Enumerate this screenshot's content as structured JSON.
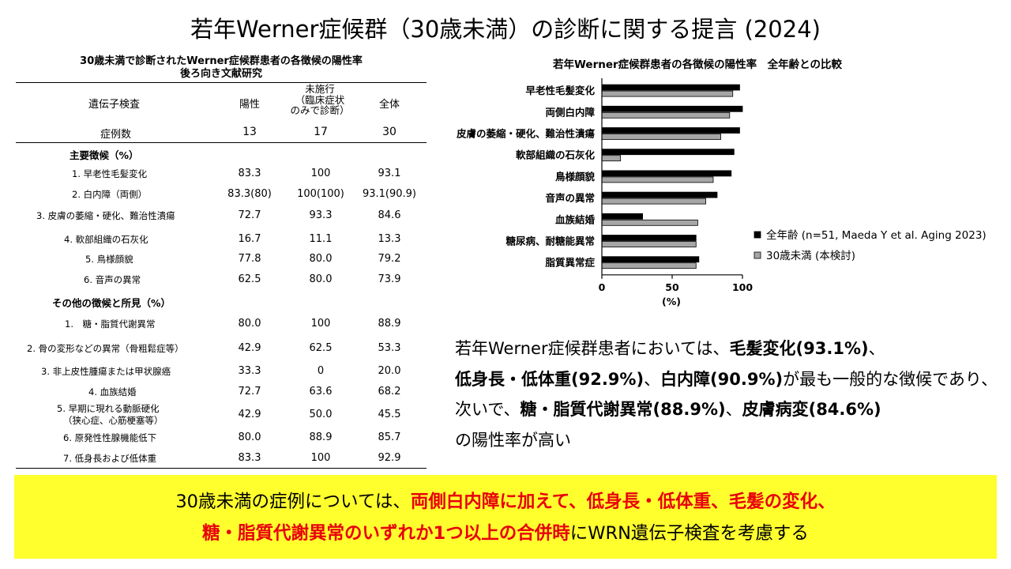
{
  "title": "若年Werner症候群（30歳未満）の診断に関する提言 (2024)",
  "table": {
    "title_line1": "30歳未満で診断されたWerner症候群患者の各徴候の陽性率",
    "title_line2": "後ろ向き文献研究",
    "header": {
      "label": "遺伝子検査",
      "col1": "陽性",
      "col2_l1": "未施行",
      "col2_l2": "（臨床症状",
      "col2_l3": "のみで診断）",
      "col3": "全体"
    },
    "count_row": {
      "label": "症例数",
      "v1": "13",
      "v2": "17",
      "v3": "30"
    },
    "section1": "主要徴候（%）",
    "rows1": [
      {
        "label": "1. 早老性毛髪変化",
        "v1": "83.3",
        "v2": "100",
        "v3": "93.1"
      },
      {
        "label": "2. 白内障（両側）",
        "v1": "83.3(80)",
        "v2": "100(100)",
        "v3": "93.1(90.9)"
      },
      {
        "label": "3. 皮膚の萎縮・硬化、難治性潰瘍",
        "v1": "72.7",
        "v2": "93.3",
        "v3": "84.6"
      },
      {
        "label": "4. 軟部組織の石灰化",
        "v1": "16.7",
        "v2": "11.1",
        "v3": "13.3"
      },
      {
        "label": "5. 鳥様顔貌",
        "v1": "77.8",
        "v2": "80.0",
        "v3": "79.2"
      },
      {
        "label": "6. 音声の異常",
        "v1": "62.5",
        "v2": "80.0",
        "v3": "73.9"
      }
    ],
    "section2": "その他の徴候と所見（%）",
    "rows2": [
      {
        "label": "1.　糖・脂質代謝異常",
        "v1": "80.0",
        "v2": "100",
        "v3": "88.9"
      },
      {
        "label": "2. 骨の変形などの異常（骨粗鬆症等）",
        "v1": "42.9",
        "v2": "62.5",
        "v3": "53.3"
      },
      {
        "label": "3. 非上皮性腫瘍または甲状腺癌",
        "v1": "33.3",
        "v2": "0",
        "v3": "20.0"
      },
      {
        "label": "4. 血族結婚",
        "v1": "72.7",
        "v2": "63.6",
        "v3": "68.2"
      },
      {
        "label": "5. 早期に現れる動脈硬化",
        "label2": "（狭心症、心筋梗塞等）",
        "v1": "42.9",
        "v2": "50.0",
        "v3": "45.5"
      },
      {
        "label": "6. 原発性性腺機能低下",
        "v1": "80.0",
        "v2": "88.9",
        "v3": "85.7"
      },
      {
        "label": "7. 低身長および低体重",
        "v1": "83.3",
        "v2": "100",
        "v3": "92.9"
      }
    ]
  },
  "chart_data": {
    "type": "bar",
    "orientation": "horizontal",
    "title": "若年Werner症候群患者の各徴候の陽性率　全年齢との比較",
    "categories": [
      "早老性毛髪変化",
      "両側白内障",
      "皮膚の萎縮・硬化、難治性潰瘍",
      "軟部組織の石灰化",
      "鳥様顔貌",
      "音声の異常",
      "血族結婚",
      "糖尿病、耐糖能異常",
      "脂質異常症"
    ],
    "series": [
      {
        "name": "全年齢 (n=51, Maeda Y et al. Aging 2023)",
        "color": "#000000",
        "values": [
          98,
          100,
          98,
          94,
          92,
          82,
          29,
          67,
          69
        ]
      },
      {
        "name": "30歳未満 (本検討)",
        "color": "#a6a6a6",
        "values": [
          93.1,
          90.9,
          84.6,
          13.3,
          79.2,
          73.9,
          68.2,
          67,
          67
        ]
      }
    ],
    "xlim": [
      0,
      100
    ],
    "xticks": [
      "0",
      "50",
      "100"
    ],
    "xlabel": "(%)",
    "legend_position": "right"
  },
  "summary": {
    "p1": "若年Werner症候群患者においては、",
    "b1": "毛髪変化(93.1%)",
    "p2": "、",
    "b2": "低身長・低体重(92.9%)",
    "p3": "、",
    "b3": "白内障(90.9%)",
    "p4": "が最も一般的な徴候であり、次いで、",
    "b4": "糖・脂質代謝異常(88.9%)",
    "p5": "、",
    "b5": "皮膚病変(84.6%)",
    "p6": "の陽性率が高い"
  },
  "banner": {
    "t1": "30歳未満の症例については、",
    "r1": "両側白内障に加えて、低身長・低体重、毛髪の変化、",
    "r2": "糖・脂質代謝異常のいずれか1つ以上の合併時",
    "t2": "にWRN遺伝子検査を考慮する",
    "background": "#ffff2e",
    "highlight_color": "#e8000b"
  }
}
